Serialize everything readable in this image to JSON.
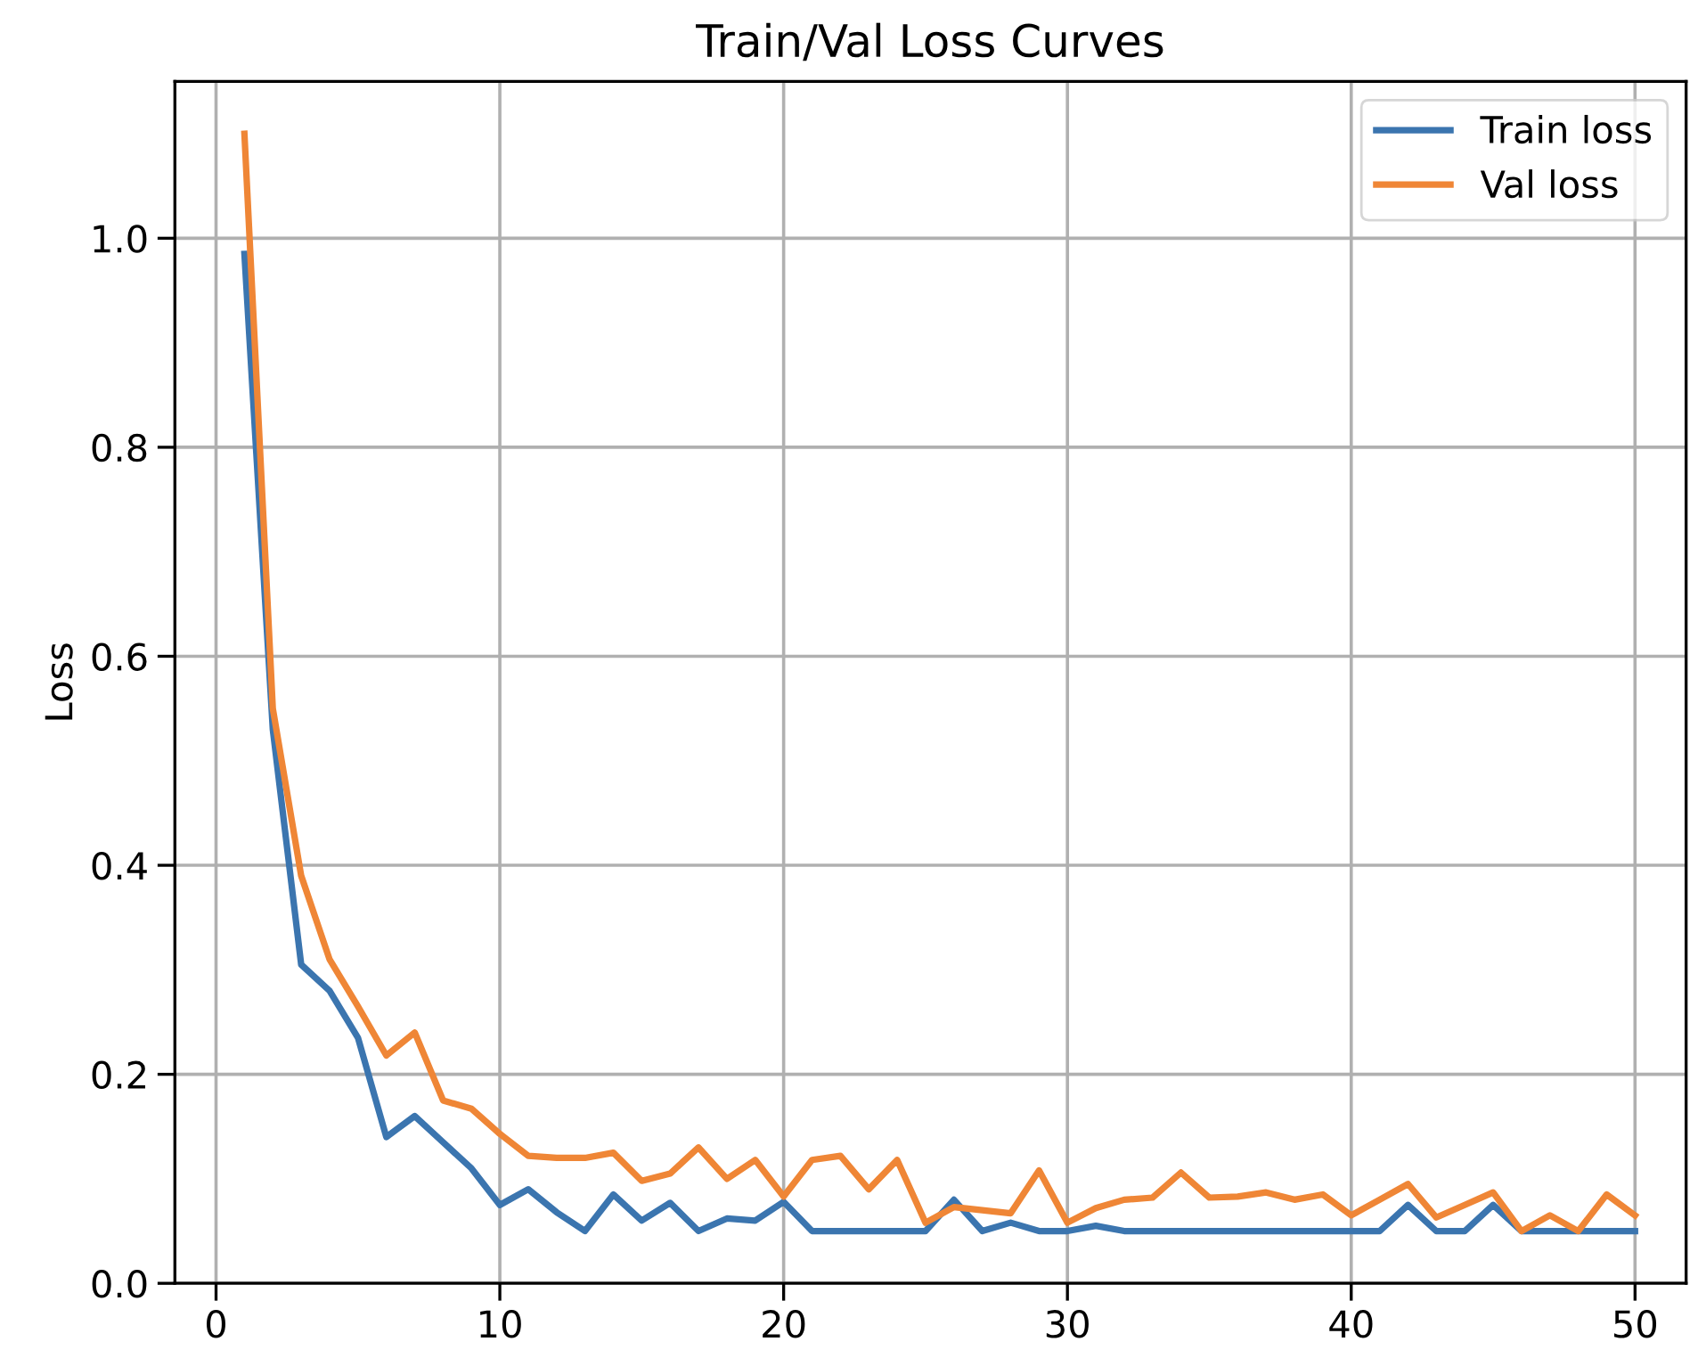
{
  "chart_data": {
    "type": "line",
    "title": "Train/Val Loss Curves",
    "ylabel": "Loss",
    "x": [
      1,
      2,
      3,
      4,
      5,
      6,
      7,
      8,
      9,
      10,
      11,
      12,
      13,
      14,
      15,
      16,
      17,
      18,
      19,
      20,
      21,
      22,
      23,
      24,
      25,
      26,
      27,
      28,
      29,
      30,
      31,
      32,
      33,
      34,
      35,
      36,
      37,
      38,
      39,
      40,
      41,
      42,
      43,
      44,
      45,
      46,
      47,
      48,
      49,
      50
    ],
    "series": [
      {
        "name": "Train loss",
        "color": "#3b75af",
        "values": [
          0.985,
          0.53,
          0.305,
          0.28,
          0.235,
          0.14,
          0.16,
          0.135,
          0.11,
          0.075,
          0.09,
          0.068,
          0.05,
          0.085,
          0.06,
          0.077,
          0.05,
          0.062,
          0.06,
          0.078,
          0.05,
          0.05,
          0.05,
          0.05,
          0.05,
          0.08,
          0.05,
          0.058,
          0.05,
          0.05,
          0.055,
          0.05,
          0.05,
          0.05,
          0.05,
          0.05,
          0.05,
          0.05,
          0.05,
          0.05,
          0.05,
          0.075,
          0.05,
          0.05,
          0.075,
          0.05,
          0.05,
          0.05,
          0.05,
          0.05
        ]
      },
      {
        "name": "Val loss",
        "color": "#ef8636",
        "values": [
          1.1,
          0.55,
          0.39,
          0.31,
          0.265,
          0.218,
          0.24,
          0.175,
          0.167,
          0.143,
          0.122,
          0.12,
          0.12,
          0.125,
          0.098,
          0.105,
          0.13,
          0.1,
          0.118,
          0.083,
          0.118,
          0.122,
          0.09,
          0.118,
          0.058,
          0.073,
          0.07,
          0.067,
          0.108,
          0.058,
          0.072,
          0.08,
          0.082,
          0.106,
          0.082,
          0.083,
          0.087,
          0.08,
          0.085,
          0.065,
          0.08,
          0.095,
          0.063,
          0.075,
          0.087,
          0.05,
          0.065,
          0.05,
          0.085,
          0.065
        ]
      }
    ],
    "xlim": [
      -1.45,
      51.8
    ],
    "ylim": [
      0,
      1.15
    ],
    "xticks": [
      0,
      10,
      20,
      30,
      40,
      50
    ],
    "yticks": [
      {
        "value": 0,
        "label": "0.0"
      },
      {
        "value": 0.2,
        "label": "0.2"
      },
      {
        "value": 0.4,
        "label": "0.4"
      },
      {
        "value": 0.6,
        "label": "0.6"
      },
      {
        "value": 0.8,
        "label": "0.8"
      },
      {
        "value": 1.0,
        "label": "1.0"
      }
    ],
    "grid": true,
    "legend": "top right",
    "line_style": "solid",
    "marker": "none"
  }
}
